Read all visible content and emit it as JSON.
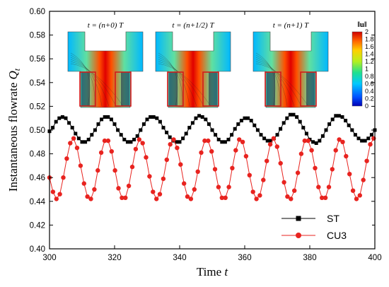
{
  "chart_data": {
    "type": "line",
    "xlabel": "Time t",
    "ylabel": "Instantaneous  flowrate Q_t",
    "xlim": [
      300,
      400
    ],
    "ylim": [
      0.4,
      0.6
    ],
    "x_ticks": [
      "300",
      "320",
      "340",
      "360",
      "380",
      "400"
    ],
    "y_ticks": [
      "0.40",
      "0.42",
      "0.44",
      "0.46",
      "0.48",
      "0.50",
      "0.52",
      "0.54",
      "0.56",
      "0.58",
      "0.60"
    ],
    "grid": false,
    "legend_position": "bottom-right",
    "series": [
      {
        "name": "ST",
        "color": "#000000",
        "marker": "square",
        "sampling": {
          "x_start": 300.0,
          "x_step": 1.0
        },
        "values": [
          0.499,
          0.502,
          0.507,
          0.51,
          0.511,
          0.51,
          0.506,
          0.502,
          0.497,
          0.493,
          0.49,
          0.49,
          0.492,
          0.496,
          0.5,
          0.505,
          0.509,
          0.511,
          0.511,
          0.509,
          0.505,
          0.5,
          0.496,
          0.492,
          0.49,
          0.49,
          0.492,
          0.495,
          0.5,
          0.505,
          0.509,
          0.511,
          0.511,
          0.51,
          0.507,
          0.502,
          0.498,
          0.494,
          0.491,
          0.49,
          0.49,
          0.493,
          0.497,
          0.502,
          0.506,
          0.51,
          0.512,
          0.511,
          0.509,
          0.505,
          0.5,
          0.496,
          0.492,
          0.49,
          0.49,
          0.492,
          0.496,
          0.501,
          0.505,
          0.508,
          0.51,
          0.51,
          0.508,
          0.504,
          0.5,
          0.496,
          0.493,
          0.491,
          0.491,
          0.493,
          0.496,
          0.501,
          0.506,
          0.51,
          0.513,
          0.513,
          0.511,
          0.507,
          0.502,
          0.497,
          0.492,
          0.49,
          0.489,
          0.491,
          0.495,
          0.5,
          0.505,
          0.509,
          0.512,
          0.512,
          0.511,
          0.508,
          0.504,
          0.5,
          0.496,
          0.493,
          0.491,
          0.491,
          0.493,
          0.496,
          0.5
        ]
      },
      {
        "name": "CU3",
        "color": "#e8231f",
        "marker": "circle",
        "sampling": {
          "x_start": 300.0,
          "x_step": 1.06
        },
        "values": [
          0.46,
          0.448,
          0.442,
          0.446,
          0.46,
          0.476,
          0.489,
          0.493,
          0.485,
          0.47,
          0.455,
          0.444,
          0.442,
          0.45,
          0.466,
          0.481,
          0.491,
          0.491,
          0.482,
          0.466,
          0.451,
          0.443,
          0.443,
          0.453,
          0.469,
          0.484,
          0.492,
          0.489,
          0.477,
          0.461,
          0.448,
          0.442,
          0.446,
          0.459,
          0.475,
          0.488,
          0.492,
          0.485,
          0.471,
          0.455,
          0.444,
          0.442,
          0.45,
          0.465,
          0.481,
          0.491,
          0.491,
          0.482,
          0.467,
          0.452,
          0.443,
          0.443,
          0.452,
          0.468,
          0.483,
          0.492,
          0.49,
          0.478,
          0.462,
          0.448,
          0.442,
          0.445,
          0.458,
          0.474,
          0.488,
          0.493,
          0.486,
          0.472,
          0.456,
          0.444,
          0.442,
          0.449,
          0.464,
          0.48,
          0.491,
          0.491,
          0.483,
          0.468,
          0.452,
          0.443,
          0.443,
          0.452,
          0.467,
          0.483,
          0.492,
          0.49,
          0.478,
          0.463,
          0.449,
          0.442,
          0.445,
          0.458,
          0.474,
          0.488,
          0.493,
          0.486
        ]
      }
    ]
  },
  "legend": {
    "st_label": "ST",
    "cu3_label": "CU3"
  },
  "inset": {
    "labels": [
      "t = (n+0) T",
      "t = (n+1/2) T",
      "t = (n+1) T"
    ],
    "colorbar_title": "‖u‖",
    "colorbar_ticks": [
      "2",
      "1.8",
      "1.6",
      "1.4",
      "1.2",
      "1",
      "0.8",
      "0.6",
      "0.4",
      "0.2",
      "0"
    ]
  }
}
